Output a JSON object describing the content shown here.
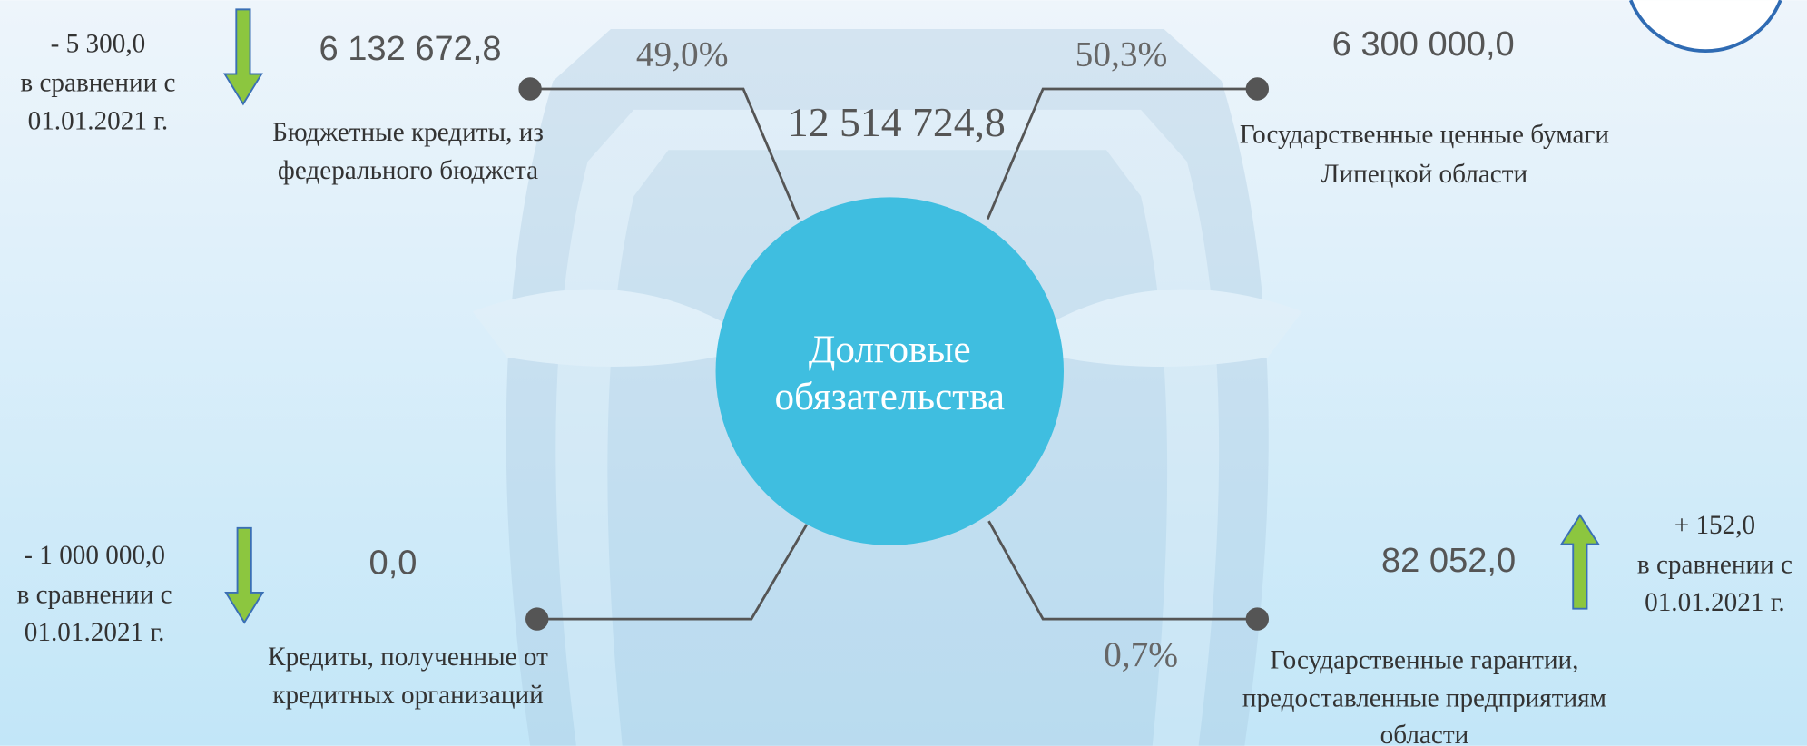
{
  "center": {
    "title_lines": [
      "Долговые",
      "обязательства"
    ],
    "total": "12 514 724,8"
  },
  "items": [
    {
      "value": "6 132 672,8",
      "percent": "49,0%",
      "label_lines": [
        "Бюджетные кредиты, из",
        "федерального бюджета"
      ],
      "change_lines": [
        "-   5 300,0",
        "в сравнении с",
        "01.01.2021 г."
      ]
    },
    {
      "value": "6 300 000,0",
      "percent": "50,3%",
      "label_lines": [
        "Государственные ценные бумаги",
        "Липецкой области"
      ]
    },
    {
      "value": "0,0",
      "label_lines": [
        "Кредиты, полученные от",
        "кредитных организаций"
      ],
      "change_lines": [
        "-   1 000 000,0",
        "в сравнении с",
        "01.01.2021 г."
      ]
    },
    {
      "value": "82 052,0",
      "percent": "0,7%",
      "label_lines": [
        "Государственные гарантии,",
        "предоставленные предприятиям",
        "области"
      ],
      "change_lines": [
        "+ 152,0",
        "в сравнении с",
        "01.01.2021 г."
      ]
    }
  ]
}
